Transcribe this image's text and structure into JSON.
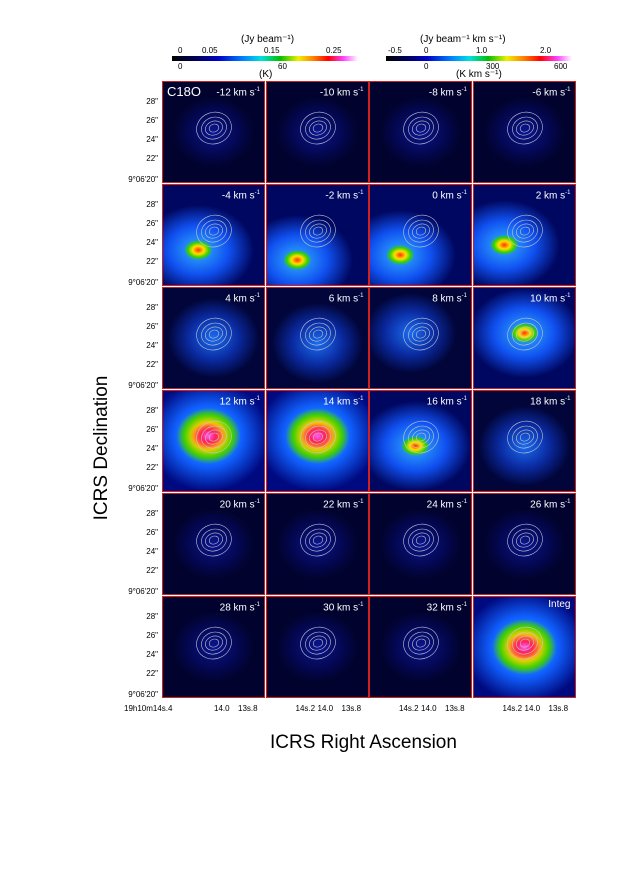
{
  "colorbar_left": {
    "unit_top": "(Jy beam⁻¹)",
    "ticks_top": [
      "0",
      "0.05",
      "0.15",
      "0.25"
    ],
    "ticks_bottom": [
      "0",
      "60"
    ],
    "unit_bottom": "(K)"
  },
  "colorbar_right": {
    "unit_top": "(Jy beam⁻¹ km s⁻¹)",
    "ticks_top": [
      "-0.5",
      "0",
      "1.0",
      "2.0"
    ],
    "ticks_bottom": [
      "0",
      "300",
      "600"
    ],
    "unit_bottom": "(K  km s⁻¹)"
  },
  "molecule": "C18O",
  "panels": [
    {
      "label": "-12 km s",
      "intensity": 0.05
    },
    {
      "label": "-10 km s",
      "intensity": 0.05
    },
    {
      "label": "-8 km s",
      "intensity": 0.05
    },
    {
      "label": "-6 km s",
      "intensity": 0.05
    },
    {
      "label": "-4 km s",
      "intensity": 0.45
    },
    {
      "label": "-2 km s",
      "intensity": 0.55
    },
    {
      "label": "0 km s",
      "intensity": 0.65
    },
    {
      "label": "2 km s",
      "intensity": 0.55
    },
    {
      "label": "4 km s",
      "intensity": 0.3
    },
    {
      "label": "6 km s",
      "intensity": 0.25
    },
    {
      "label": "8 km s",
      "intensity": 0.3
    },
    {
      "label": "10 km s",
      "intensity": 0.4
    },
    {
      "label": "12 km s",
      "intensity": 0.95
    },
    {
      "label": "14 km s",
      "intensity": 0.9
    },
    {
      "label": "16 km s",
      "intensity": 0.6
    },
    {
      "label": "18 km s",
      "intensity": 0.35
    },
    {
      "label": "20 km s",
      "intensity": 0.15
    },
    {
      "label": "22 km s",
      "intensity": 0.08
    },
    {
      "label": "24 km s",
      "intensity": 0.05
    },
    {
      "label": "26 km s",
      "intensity": 0.05
    },
    {
      "label": "28 km s",
      "intensity": 0.05
    },
    {
      "label": "30 km s",
      "intensity": 0.05
    },
    {
      "label": "32 km s",
      "intensity": 0.05
    },
    {
      "label": "Integ",
      "intensity": 1.0
    }
  ],
  "y_ticks": [
    "28\"",
    "26\"",
    "24\"",
    "22\"",
    "9°06'20\""
  ],
  "x_ticks_first": "19h10m14s.4",
  "x_ticks": [
    "14s.2",
    "14.0",
    "13s.8"
  ],
  "x_axis_title": "ICRS Right Ascension",
  "y_axis_title": "ICRS Declination"
}
